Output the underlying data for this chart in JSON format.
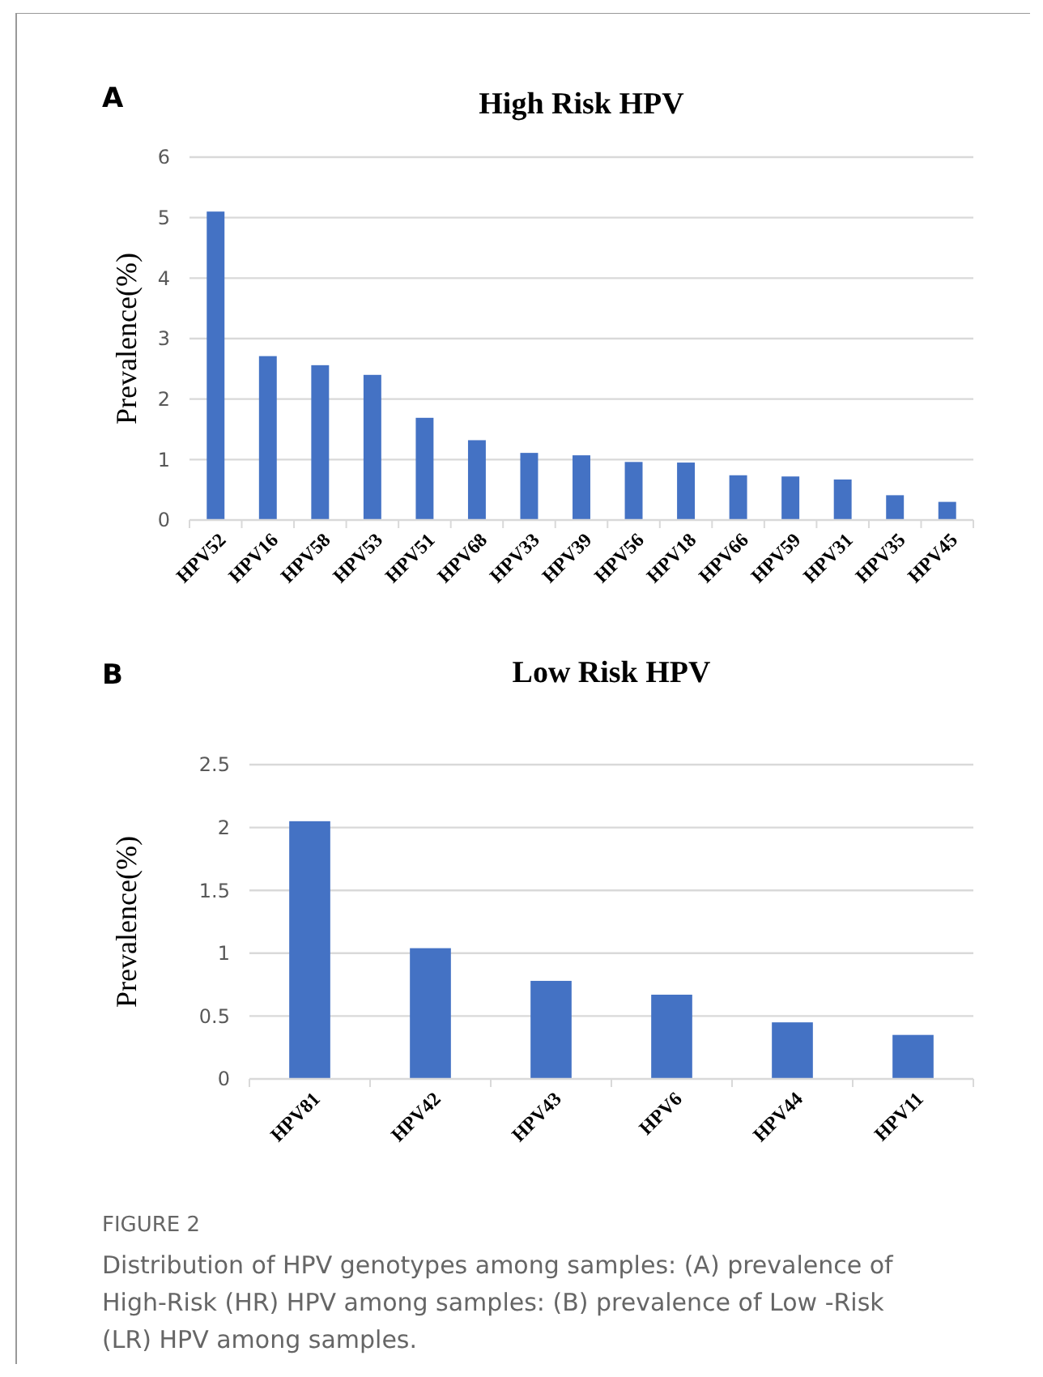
{
  "chart_data": [
    {
      "type": "bar",
      "title": "High Risk HPV",
      "ylabel": "Prevalence(%)",
      "annotations": [
        "A"
      ],
      "categories": [
        "HPV52",
        "HPV16",
        "HPV58",
        "HPV53",
        "HPV51",
        "HPV68",
        "HPV33",
        "HPV39",
        "HPV56",
        "HPV18",
        "HPV66",
        "HPV59",
        "HPV31",
        "HPV35",
        "HPV45"
      ],
      "values": [
        5.1,
        2.71,
        2.56,
        2.4,
        1.69,
        1.32,
        1.11,
        1.07,
        0.96,
        0.95,
        0.74,
        0.72,
        0.67,
        0.41,
        0.3
      ],
      "color": "#4472c4",
      "ylim": [
        0,
        6
      ],
      "yticks": [
        0,
        1,
        2,
        3,
        4,
        5,
        6
      ],
      "grid": "y"
    },
    {
      "type": "bar",
      "title": "Low Risk HPV",
      "ylabel": "Prevalence(%)",
      "annotations": [
        "B",
        "FIGURE 2",
        "Distribution of HPV genotypes among samples: (A) prevalence of High-Risk (HR) HPV among samples: (B) prevalence of Low -Risk (LR) HPV among samples."
      ],
      "categories": [
        "HPV81",
        "HPV42",
        "HPV43",
        "HPV6",
        "HPV44",
        "HPV11"
      ],
      "values": [
        2.05,
        1.04,
        0.78,
        0.67,
        0.45,
        0.35
      ],
      "color": "#4472c4",
      "ylim": [
        0,
        2.5
      ],
      "yticks": [
        0,
        0.5,
        1,
        1.5,
        2,
        2.5
      ],
      "grid": "y"
    }
  ]
}
